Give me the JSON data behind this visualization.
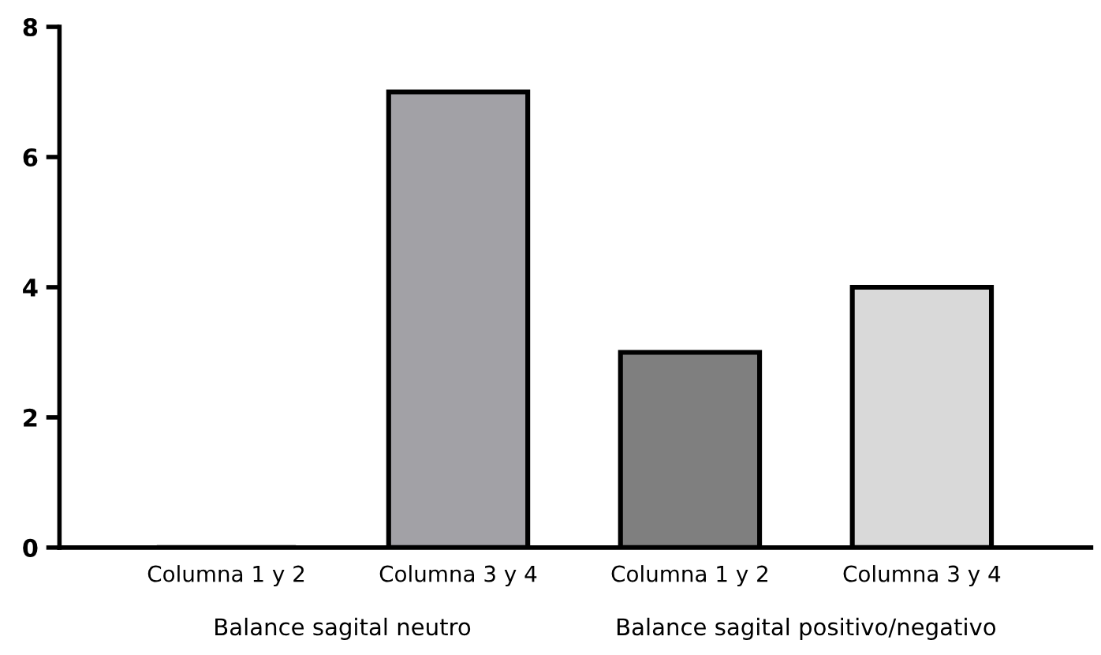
{
  "chart_data": {
    "type": "bar",
    "categories": [
      "Columna 1 y 2",
      "Columna 3 y 4",
      "Columna 1 y 2",
      "Columna 3 y 4"
    ],
    "values": [
      0,
      7,
      3,
      4
    ],
    "colors": [
      "#000000",
      "#a2a1a6",
      "#7f7f7f",
      "#d9d9d9"
    ],
    "ylim": [
      0,
      8
    ],
    "yticks": [
      0,
      2,
      4,
      6,
      8
    ],
    "grid": false,
    "legend": false,
    "annotations": [
      "Balance sagital neutro",
      "Balance sagital positivo/negativo"
    ]
  }
}
